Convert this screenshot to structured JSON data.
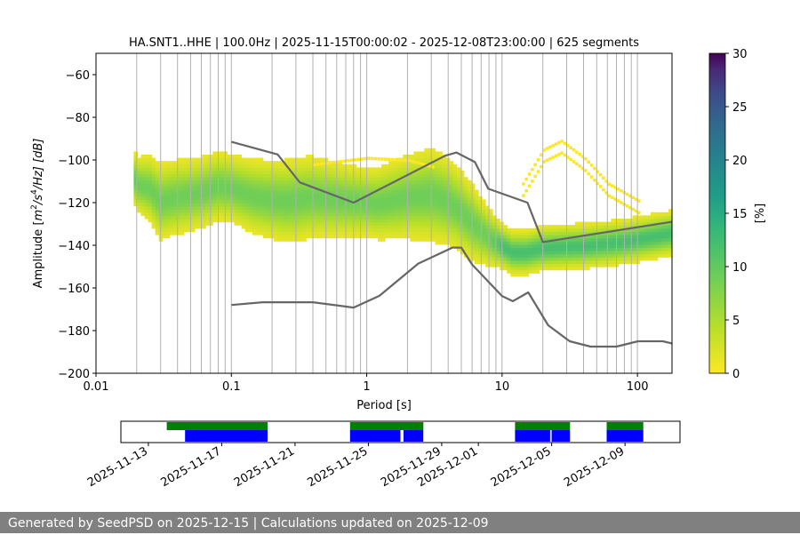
{
  "chart_data": {
    "type": "heatmap",
    "title": "HA.SNT1..HHE | 100.0Hz | 2025-11-15T00:00:02 - 2025-12-08T23:00:00 | 625 segments",
    "xlabel": "Period [s]",
    "ylabel_parts": {
      "pre": "Amplitude [",
      "m": "m",
      "sup2": "2",
      "mid": "/s",
      "sup4": "4",
      "post": "/Hz] [dB]"
    },
    "xscale": "log",
    "xlim": [
      0.01,
      180
    ],
    "ylim": [
      -200,
      -50
    ],
    "x_ticks": [
      {
        "v": 0.01,
        "label": "0.01"
      },
      {
        "v": 0.1,
        "label": "0.1"
      },
      {
        "v": 1,
        "label": "1"
      },
      {
        "v": 10,
        "label": "10"
      },
      {
        "v": 100,
        "label": "100"
      }
    ],
    "y_ticks": [
      {
        "v": -60,
        "label": "−60"
      },
      {
        "v": -80,
        "label": "−80"
      },
      {
        "v": -100,
        "label": "−100"
      },
      {
        "v": -120,
        "label": "−120"
      },
      {
        "v": -140,
        "label": "−140"
      },
      {
        "v": -160,
        "label": "−160"
      },
      {
        "v": -180,
        "label": "−180"
      },
      {
        "v": -200,
        "label": "−200"
      }
    ],
    "colorbar": {
      "label": "[%]",
      "min": 0,
      "max": 30,
      "ticks": [
        {
          "v": 0,
          "label": "0"
        },
        {
          "v": 5,
          "label": "5"
        },
        {
          "v": 10,
          "label": "10"
        },
        {
          "v": 15,
          "label": "15"
        },
        {
          "v": 20,
          "label": "20"
        },
        {
          "v": 25,
          "label": "25"
        },
        {
          "v": 30,
          "label": "30"
        }
      ]
    },
    "nhnm": {
      "name": "NHNM",
      "points": [
        [
          0.1,
          -91.5
        ],
        [
          0.22,
          -97.4
        ],
        [
          0.32,
          -110.5
        ],
        [
          0.8,
          -120
        ],
        [
          3.8,
          -98
        ],
        [
          4.6,
          -96.5
        ],
        [
          6.3,
          -101
        ],
        [
          7.9,
          -113.5
        ],
        [
          15.4,
          -120
        ],
        [
          20,
          -138.5
        ],
        [
          180,
          -129
        ]
      ]
    },
    "nlnm": {
      "name": "NLNM",
      "points": [
        [
          0.1,
          -168
        ],
        [
          0.17,
          -166.7
        ],
        [
          0.4,
          -166.7
        ],
        [
          0.8,
          -169.2
        ],
        [
          1.24,
          -163.7
        ],
        [
          2.4,
          -148.6
        ],
        [
          4.3,
          -141.1
        ],
        [
          5,
          -141.1
        ],
        [
          6,
          -149
        ],
        [
          10,
          -163.8
        ],
        [
          12,
          -166.2
        ],
        [
          15.6,
          -162.1
        ],
        [
          21.9,
          -177.5
        ],
        [
          31.6,
          -185
        ],
        [
          45,
          -187.5
        ],
        [
          70,
          -187.5
        ],
        [
          101,
          -185
        ],
        [
          154,
          -185
        ],
        [
          180,
          -186
        ]
      ]
    },
    "psd_mode": {
      "name": "mode",
      "points": [
        [
          0.019,
          -107
        ],
        [
          0.02,
          -112
        ],
        [
          0.025,
          -114
        ],
        [
          0.03,
          -120
        ],
        [
          0.04,
          -118
        ],
        [
          0.06,
          -116
        ],
        [
          0.08,
          -113
        ],
        [
          0.1,
          -114
        ],
        [
          0.15,
          -118
        ],
        [
          0.25,
          -120
        ],
        [
          0.4,
          -118
        ],
        [
          0.8,
          -120
        ],
        [
          1.2,
          -121
        ],
        [
          2,
          -118
        ],
        [
          3,
          -117
        ],
        [
          4,
          -120
        ],
        [
          5,
          -125
        ],
        [
          6,
          -130
        ],
        [
          8,
          -137
        ],
        [
          10,
          -141
        ],
        [
          12,
          -144
        ],
        [
          15,
          -144
        ],
        [
          20,
          -142
        ],
        [
          40,
          -141
        ],
        [
          80,
          -139
        ],
        [
          120,
          -137
        ],
        [
          180,
          -135
        ]
      ]
    },
    "psd_spread": {
      "name": "spread_db",
      "points": [
        [
          0.019,
          6
        ],
        [
          0.03,
          9
        ],
        [
          0.1,
          8
        ],
        [
          0.3,
          10
        ],
        [
          1,
          8
        ],
        [
          3,
          11
        ],
        [
          6,
          9
        ],
        [
          10,
          5
        ],
        [
          20,
          5
        ],
        [
          60,
          5
        ],
        [
          180,
          5
        ]
      ]
    },
    "psd_upper_outliers": {
      "name": "upper_outliers",
      "points": [
        [
          0.4,
          -103
        ],
        [
          1,
          -100
        ],
        [
          2,
          -101
        ],
        [
          3,
          -104
        ]
      ],
      "arc": [
        [
          14,
          -112
        ],
        [
          20,
          -96
        ],
        [
          27,
          -92
        ],
        [
          40,
          -100
        ],
        [
          60,
          -112
        ],
        [
          100,
          -120
        ]
      ]
    }
  },
  "timeline": {
    "tick_labels": [
      "2025-11-13",
      "2025-11-17",
      "2025-11-21",
      "2025-11-25",
      "2025-11-29",
      "2025-12-01",
      "2025-12-05",
      "2025-12-09"
    ],
    "available_color": "#008000",
    "used_color": "#0000ff",
    "available_spans": [
      [
        "2025-11-14T00:00",
        "2025-11-19T12:00"
      ],
      [
        "2025-11-24T00:00",
        "2025-11-28T00:00"
      ],
      [
        "2025-12-03T00:00",
        "2025-12-06T00:00"
      ],
      [
        "2025-12-08T00:00",
        "2025-12-10T00:00"
      ]
    ],
    "used_spans": [
      [
        "2025-11-15T00:00",
        "2025-11-19T12:00"
      ],
      [
        "2025-11-24T00:00",
        "2025-11-26T18:00"
      ],
      [
        "2025-11-26T22:00",
        "2025-11-28T00:00"
      ],
      [
        "2025-12-03T00:00",
        "2025-12-04T22:00"
      ],
      [
        "2025-12-05T00:00",
        "2025-12-06T00:00"
      ],
      [
        "2025-12-08T00:00",
        "2025-12-10T00:00"
      ]
    ]
  },
  "footer": {
    "text": "Generated by SeedPSD on 2025-12-15 | Calculations updated on 2025-12-09"
  }
}
